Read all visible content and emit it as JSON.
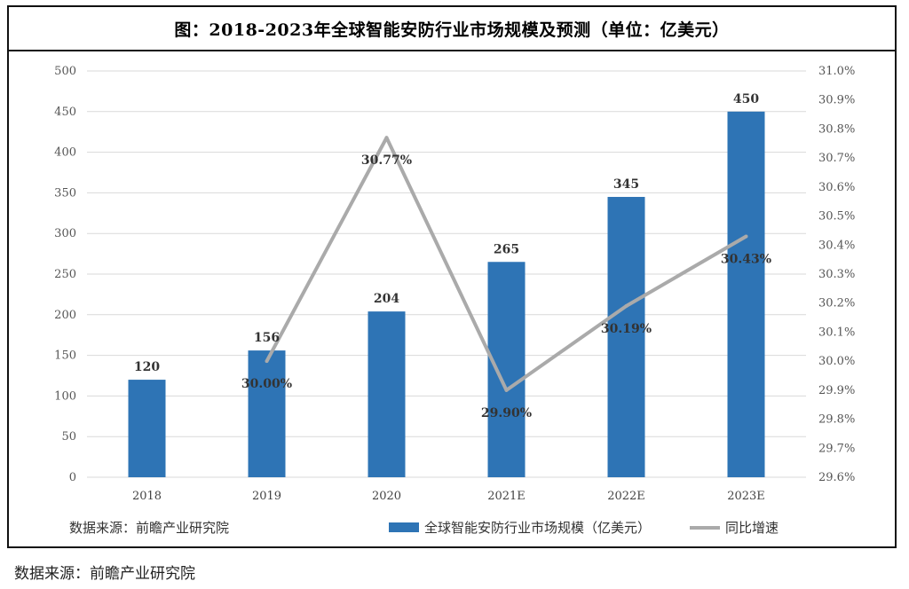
{
  "title": "图：2018-2023年全球智能安防行业市场规模及预测（单位：亿美元）",
  "source_inner": "数据来源：前瞻产业研究院",
  "source_outer": "数据来源：前瞻产业研究院",
  "colors": {
    "bar": "#2e74b5",
    "line": "#aaaaaa",
    "grid": "#d9d9d9"
  },
  "chart_data": {
    "type": "bar",
    "categories": [
      "2018",
      "2019",
      "2020",
      "2021E",
      "2022E",
      "2023E"
    ],
    "series": [
      {
        "name": "全球智能安防行业市场规模（亿美元）",
        "type": "bar",
        "axis": "left",
        "values": [
          120,
          156,
          204,
          265,
          345,
          450
        ],
        "labels": [
          "120",
          "156",
          "204",
          "265",
          "345",
          "450"
        ]
      },
      {
        "name": "同比增速",
        "type": "line",
        "axis": "right",
        "values": [
          null,
          30.0,
          30.77,
          29.9,
          30.19,
          30.43
        ],
        "labels": [
          "",
          "30.00%",
          "30.77%",
          "29.90%",
          "30.19%",
          "30.43%"
        ]
      }
    ],
    "ylim": [
      0,
      500
    ],
    "y_ticks": [
      "0",
      "50",
      "100",
      "150",
      "200",
      "250",
      "300",
      "350",
      "400",
      "450",
      "500"
    ],
    "y2lim": [
      29.6,
      31.0
    ],
    "y2_ticks": [
      "29.6%",
      "29.7%",
      "29.8%",
      "29.9%",
      "30.0%",
      "30.1%",
      "30.2%",
      "30.3%",
      "30.4%",
      "30.5%",
      "30.6%",
      "30.7%",
      "30.8%",
      "30.9%",
      "31.0%"
    ],
    "grid": true,
    "legend": "bottom"
  }
}
